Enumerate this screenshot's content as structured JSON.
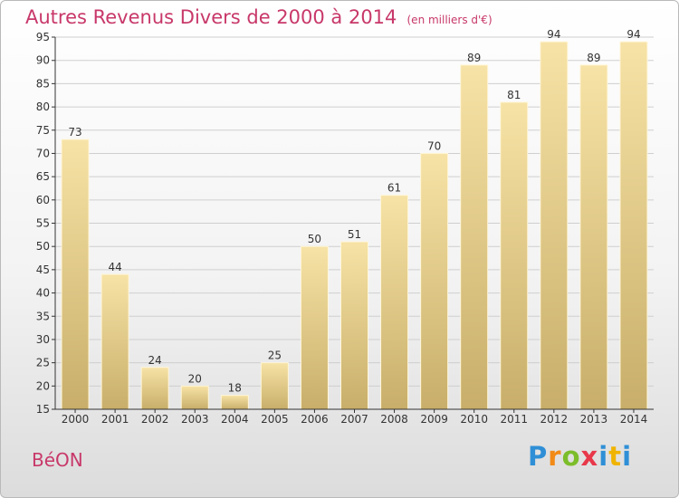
{
  "header": {
    "title": "Autres Revenus Divers de 2000 à 2014",
    "unit": "(en milliers d'€)"
  },
  "footer": {
    "place": "BéON",
    "logo": "Proxiti"
  },
  "colors": {
    "title": "#c8386a",
    "bar_light": "#f7e3a6",
    "bar_dark": "#c8ae6a",
    "axis": "#333333",
    "grid": "#cfcfcf"
  },
  "chart_data": {
    "type": "bar",
    "title": "Autres Revenus Divers de 2000 à 2014",
    "subtitle": "(en milliers d'€)",
    "xlabel": "",
    "ylabel": "",
    "categories": [
      "2000",
      "2001",
      "2002",
      "2003",
      "2004",
      "2005",
      "2006",
      "2007",
      "2008",
      "2009",
      "2010",
      "2011",
      "2012",
      "2013",
      "2014"
    ],
    "values": [
      73,
      44,
      24,
      20,
      18,
      25,
      50,
      51,
      61,
      70,
      89,
      81,
      94,
      89,
      94
    ],
    "ylim": [
      15,
      95
    ],
    "yticks": [
      15,
      20,
      25,
      30,
      35,
      40,
      45,
      50,
      55,
      60,
      65,
      70,
      75,
      80,
      85,
      90,
      95
    ],
    "grid": true,
    "legend": "none"
  }
}
